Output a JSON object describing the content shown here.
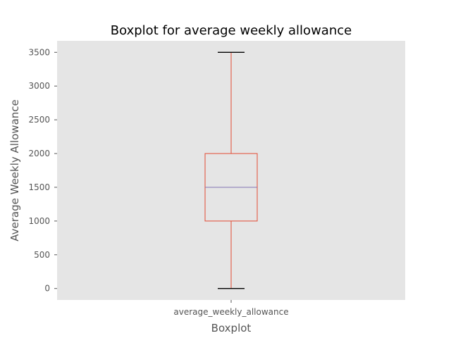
{
  "chart_data": {
    "type": "box",
    "title": "Boxplot for average weekly allowance",
    "xlabel": "Boxplot",
    "ylabel": "Average Weekly Allowance",
    "categories": [
      "average_weekly_allowance"
    ],
    "ylim": [
      -170,
      3670
    ],
    "yticks": [
      0,
      500,
      1000,
      1500,
      2000,
      2500,
      3000,
      3500
    ],
    "grid": false,
    "boxes": [
      {
        "label": "average_weekly_allowance",
        "whisker_low": 0,
        "q1": 1000,
        "median": 1500,
        "q3": 2000,
        "whisker_high": 3500
      }
    ],
    "colors": {
      "background": "#e5e5e5",
      "box": "#e24a33",
      "median": "#8172b2",
      "caps": "#000000",
      "tick": "#555555"
    }
  }
}
